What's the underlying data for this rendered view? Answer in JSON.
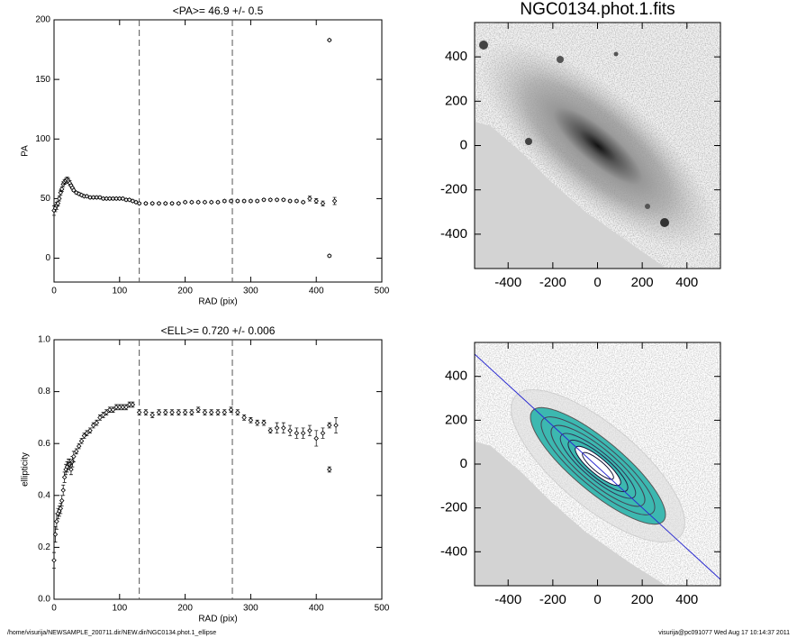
{
  "chart_data": [
    {
      "type": "scatter",
      "title": "<PA>=  46.9 +/-   0.5",
      "xlabel": "RAD (pix)",
      "ylabel": "PA",
      "color": "#000000",
      "xlim": [
        0,
        500
      ],
      "ylim": [
        -20,
        200
      ],
      "xticks": [
        0,
        100,
        200,
        300,
        400,
        500
      ],
      "yticks": [
        0,
        50,
        100,
        150,
        200
      ],
      "vlines": [
        130,
        272
      ],
      "x": [
        0,
        2,
        4,
        6,
        8,
        10,
        12,
        14,
        16,
        18,
        20,
        22,
        24,
        26,
        28,
        30,
        34,
        38,
        42,
        46,
        50,
        55,
        60,
        65,
        70,
        75,
        80,
        85,
        90,
        95,
        100,
        105,
        110,
        115,
        120,
        125,
        130,
        140,
        150,
        160,
        170,
        180,
        190,
        200,
        210,
        220,
        230,
        240,
        250,
        260,
        270,
        280,
        290,
        300,
        310,
        320,
        330,
        340,
        350,
        360,
        370,
        380,
        390,
        400,
        410,
        420,
        420,
        428
      ],
      "values": [
        40,
        42,
        44,
        46,
        50,
        55,
        58,
        62,
        64,
        65,
        66,
        65,
        63,
        61,
        59,
        57,
        55,
        54,
        53,
        52,
        52,
        51,
        51,
        51,
        51,
        50,
        50,
        50,
        50,
        50,
        50,
        50,
        49,
        49,
        48,
        47,
        46,
        46,
        46,
        46,
        46,
        46,
        46,
        47,
        47,
        47,
        47,
        47,
        47,
        48,
        48,
        48,
        48,
        48,
        48,
        49,
        49,
        49,
        49,
        48,
        48,
        47,
        50,
        48,
        46,
        183,
        2,
        48
      ],
      "errors": [
        4,
        3,
        3,
        2,
        2,
        2,
        2,
        2,
        2,
        2,
        2,
        2,
        2,
        1,
        1,
        1,
        1,
        1,
        1,
        1,
        1,
        1,
        1,
        1,
        1,
        1,
        1,
        1,
        1,
        1,
        1,
        1,
        1,
        1,
        1,
        1,
        1,
        1,
        1,
        1,
        1,
        1,
        1,
        1,
        1,
        1,
        1,
        1,
        1,
        1,
        1,
        1,
        1,
        1,
        1,
        1,
        1,
        1,
        1,
        1,
        1,
        1,
        2,
        2,
        2,
        1,
        1,
        3
      ]
    },
    {
      "type": "image",
      "title": "NGC0134.phot.1.fits",
      "xlim": [
        -550,
        550
      ],
      "ylim": [
        -555,
        555
      ],
      "xticks": [
        -400,
        -200,
        0,
        200,
        400
      ],
      "yticks": [
        -400,
        -200,
        0,
        200,
        400
      ]
    },
    {
      "type": "scatter",
      "title": "<ELL>= 0.720 +/-  0.006",
      "xlabel": "RAD (pix)",
      "ylabel": "ellipticity",
      "color": "#000000",
      "xlim": [
        0,
        500
      ],
      "ylim": [
        0,
        1
      ],
      "xticks": [
        0,
        100,
        200,
        300,
        400,
        500
      ],
      "yticks": [
        {
          "value": 0,
          "label": "0.0"
        },
        0.2,
        0.4,
        0.6,
        0.8,
        {
          "value": 1,
          "label": "1.0"
        }
      ],
      "vlines": [
        130,
        272
      ],
      "x": [
        0,
        2,
        4,
        6,
        8,
        10,
        12,
        14,
        16,
        18,
        20,
        22,
        24,
        26,
        28,
        30,
        34,
        38,
        42,
        46,
        50,
        55,
        60,
        65,
        70,
        75,
        80,
        85,
        90,
        95,
        100,
        105,
        110,
        115,
        120,
        130,
        140,
        150,
        160,
        170,
        180,
        190,
        200,
        210,
        220,
        230,
        240,
        250,
        260,
        270,
        280,
        290,
        300,
        310,
        320,
        330,
        340,
        350,
        360,
        370,
        380,
        390,
        400,
        410,
        420,
        420,
        430
      ],
      "values": [
        0.15,
        0.25,
        0.3,
        0.33,
        0.34,
        0.35,
        0.38,
        0.42,
        0.47,
        0.5,
        0.51,
        0.52,
        0.52,
        0.5,
        0.53,
        0.55,
        0.57,
        0.59,
        0.61,
        0.63,
        0.64,
        0.65,
        0.67,
        0.68,
        0.7,
        0.71,
        0.72,
        0.73,
        0.73,
        0.74,
        0.74,
        0.74,
        0.74,
        0.75,
        0.75,
        0.72,
        0.72,
        0.71,
        0.72,
        0.72,
        0.72,
        0.72,
        0.72,
        0.72,
        0.73,
        0.72,
        0.72,
        0.72,
        0.72,
        0.73,
        0.72,
        0.7,
        0.69,
        0.68,
        0.68,
        0.65,
        0.66,
        0.66,
        0.65,
        0.64,
        0.64,
        0.65,
        0.62,
        0.64,
        0.67,
        0.5,
        0.67
      ],
      "errors": [
        0.03,
        0.03,
        0.03,
        0.02,
        0.02,
        0.02,
        0.02,
        0.02,
        0.02,
        0.02,
        0.02,
        0.02,
        0.02,
        0.02,
        0.02,
        0.02,
        0.01,
        0.01,
        0.01,
        0.01,
        0.01,
        0.01,
        0.01,
        0.01,
        0.01,
        0.01,
        0.01,
        0.01,
        0.01,
        0.01,
        0.01,
        0.01,
        0.01,
        0.01,
        0.01,
        0.01,
        0.01,
        0.01,
        0.01,
        0.01,
        0.01,
        0.01,
        0.01,
        0.01,
        0.01,
        0.01,
        0.01,
        0.01,
        0.01,
        0.01,
        0.01,
        0.01,
        0.01,
        0.01,
        0.01,
        0.01,
        0.02,
        0.02,
        0.02,
        0.02,
        0.02,
        0.02,
        0.03,
        0.02,
        0.01,
        0.01,
        0.03
      ]
    },
    {
      "type": "image",
      "xlim": [
        -550,
        550
      ],
      "ylim": [
        -555,
        555
      ],
      "xticks": [
        -400,
        -200,
        0,
        200,
        400
      ],
      "yticks": [
        -400,
        -200,
        0,
        200,
        400
      ]
    }
  ],
  "footer": {
    "left": "/home/visurija/NEWSAMPLE_200711.dir/NEW.dir/NGC0134.phot.1_ellipse",
    "right": "visurija@pc091077  Wed Aug 17 10:14:37 2011"
  }
}
